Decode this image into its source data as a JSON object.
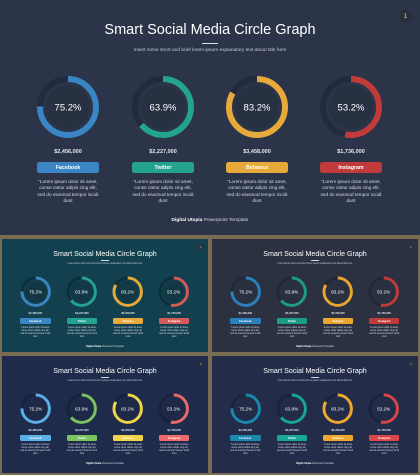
{
  "slide_title": "Smart Social Media Circle Graph",
  "slide_subtitle": "Insert some short and brief lorem ipsum explanatory text about title here",
  "page_number": "1",
  "footer": {
    "brand": "Digital Utopia",
    "rest": "Powerpoint Template"
  },
  "description": "\"Lorem ipsum dolor  sit amet, conse ctetur adipis cing elit, sed do eiusmod tempor incidi dunt",
  "items": [
    {
      "percent_label": "75.2%",
      "fraction": 0.752,
      "amount": "$2,456,000",
      "label": "Facebook"
    },
    {
      "percent_label": "63.9%",
      "fraction": 0.639,
      "amount": "$2,227,000",
      "label": "Twitter"
    },
    {
      "percent_label": "83.2%",
      "fraction": 0.832,
      "amount": "$3,458,000",
      "label": "Behance"
    },
    {
      "percent_label": "53.2%",
      "fraction": 0.532,
      "amount": "$1,736,000",
      "label": "Instagram"
    }
  ],
  "slides": [
    {
      "id": "slide-main",
      "background": "#2b3448",
      "track": "#222b3d",
      "inner": "#283142",
      "colors": [
        "#3a86c4",
        "#24a390",
        "#e6a93a",
        "#c23b3b"
      ]
    },
    {
      "id": "slide-teal",
      "background": "#12404e",
      "track": "#0c2f3a",
      "inner": "#123845",
      "colors": [
        "#3a86c4",
        "#24a390",
        "#e6a93a",
        "#d65a5a"
      ]
    },
    {
      "id": "slide-dark",
      "background": "#2b3140",
      "track": "#222835",
      "inner": "#293040",
      "colors": [
        "#2c7fbd",
        "#1f9b8a",
        "#e8a530",
        "#c23b3b"
      ]
    },
    {
      "id": "slide-bright",
      "background": "#1f2b4b",
      "track": "#18223d",
      "inner": "#1e2947",
      "colors": [
        "#5bb0e8",
        "#7cc461",
        "#f0d548",
        "#ee6a6a"
      ]
    },
    {
      "id": "slide-navy",
      "background": "#232d4a",
      "track": "#1a233b",
      "inner": "#222c47",
      "colors": [
        "#1c88b0",
        "#18a797",
        "#f0a730",
        "#d9464a"
      ]
    }
  ]
}
